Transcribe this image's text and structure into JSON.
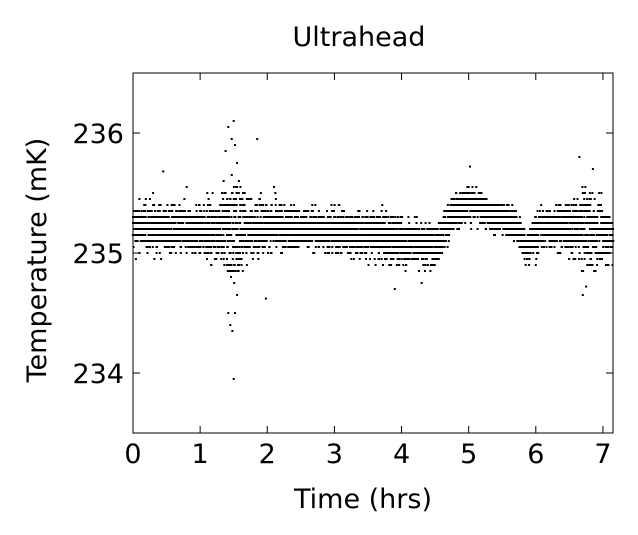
{
  "chart_data": {
    "type": "scatter",
    "title": "Ultrahead",
    "xlabel": "Time (hrs)",
    "ylabel": "Temperature (mK)",
    "xlim": [
      0,
      7.15
    ],
    "ylim": [
      233.5,
      236.5
    ],
    "xticks": [
      0,
      1,
      2,
      3,
      4,
      5,
      6,
      7
    ],
    "yticks": [
      234,
      235,
      236
    ],
    "grid": false,
    "legend": "none",
    "marker_color": "#000000",
    "quantization_step_mK": 0.05,
    "sampling_interval_hrs": 0.01,
    "baseline_trend": [
      {
        "t": 0.0,
        "mean": 235.22,
        "spread": 0.17
      },
      {
        "t": 0.5,
        "mean": 235.2,
        "spread": 0.17
      },
      {
        "t": 1.0,
        "mean": 235.18,
        "spread": 0.17
      },
      {
        "t": 1.3,
        "mean": 235.2,
        "spread": 0.22
      },
      {
        "t": 1.5,
        "mean": 235.2,
        "spread": 0.45
      },
      {
        "t": 1.7,
        "mean": 235.2,
        "spread": 0.2
      },
      {
        "t": 2.0,
        "mean": 235.22,
        "spread": 0.18
      },
      {
        "t": 2.5,
        "mean": 235.2,
        "spread": 0.15
      },
      {
        "t": 3.0,
        "mean": 235.18,
        "spread": 0.15
      },
      {
        "t": 3.5,
        "mean": 235.15,
        "spread": 0.17
      },
      {
        "t": 4.0,
        "mean": 235.1,
        "spread": 0.18
      },
      {
        "t": 4.5,
        "mean": 235.05,
        "spread": 0.15
      },
      {
        "t": 4.8,
        "mean": 235.35,
        "spread": 0.12
      },
      {
        "t": 5.0,
        "mean": 235.42,
        "spread": 0.12
      },
      {
        "t": 5.3,
        "mean": 235.32,
        "spread": 0.12
      },
      {
        "t": 5.7,
        "mean": 235.25,
        "spread": 0.12
      },
      {
        "t": 5.85,
        "mean": 235.05,
        "spread": 0.12
      },
      {
        "t": 6.1,
        "mean": 235.22,
        "spread": 0.15
      },
      {
        "t": 6.5,
        "mean": 235.2,
        "spread": 0.17
      },
      {
        "t": 6.75,
        "mean": 235.2,
        "spread": 0.3
      },
      {
        "t": 7.15,
        "mean": 235.15,
        "spread": 0.17
      }
    ],
    "outliers": [
      {
        "x": 1.35,
        "y": 235.6
      },
      {
        "x": 1.38,
        "y": 235.85
      },
      {
        "x": 1.42,
        "y": 236.05
      },
      {
        "x": 1.47,
        "y": 235.95
      },
      {
        "x": 1.5,
        "y": 236.1
      },
      {
        "x": 1.52,
        "y": 235.9
      },
      {
        "x": 1.55,
        "y": 235.75
      },
      {
        "x": 1.42,
        "y": 234.5
      },
      {
        "x": 1.45,
        "y": 234.4
      },
      {
        "x": 1.48,
        "y": 234.35
      },
      {
        "x": 1.52,
        "y": 234.5
      },
      {
        "x": 1.55,
        "y": 234.65
      },
      {
        "x": 1.5,
        "y": 233.95
      },
      {
        "x": 1.85,
        "y": 235.95
      },
      {
        "x": 1.98,
        "y": 234.62
      },
      {
        "x": 0.3,
        "y": 235.5
      },
      {
        "x": 0.45,
        "y": 235.68
      },
      {
        "x": 0.8,
        "y": 235.55
      },
      {
        "x": 2.1,
        "y": 235.55
      },
      {
        "x": 3.9,
        "y": 234.7
      },
      {
        "x": 4.3,
        "y": 234.75
      },
      {
        "x": 5.02,
        "y": 235.72
      },
      {
        "x": 6.0,
        "y": 234.9
      },
      {
        "x": 6.65,
        "y": 235.8
      },
      {
        "x": 6.7,
        "y": 234.65
      },
      {
        "x": 6.75,
        "y": 234.72
      },
      {
        "x": 6.85,
        "y": 235.7
      },
      {
        "x": 6.9,
        "y": 235.05
      }
    ]
  }
}
